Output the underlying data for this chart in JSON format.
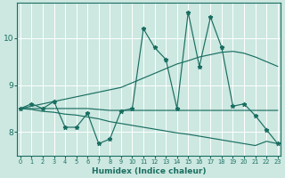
{
  "xlabel": "Humidex (Indice chaleur)",
  "bg_color": "#cce8e0",
  "grid_color": "#ffffff",
  "line_color": "#1a6e62",
  "x_values": [
    0,
    1,
    2,
    3,
    4,
    5,
    6,
    7,
    8,
    9,
    10,
    11,
    12,
    13,
    14,
    15,
    16,
    17,
    18,
    19,
    20,
    21,
    22,
    23
  ],
  "y_main": [
    8.5,
    8.6,
    8.5,
    8.65,
    8.1,
    8.1,
    8.4,
    7.75,
    7.85,
    8.45,
    8.5,
    10.2,
    9.8,
    9.55,
    8.5,
    10.55,
    9.4,
    10.45,
    9.8,
    8.55,
    8.6,
    8.35,
    8.05,
    7.75
  ],
  "y_upper": [
    8.5,
    8.55,
    8.6,
    8.65,
    8.7,
    8.75,
    8.8,
    8.85,
    8.9,
    8.95,
    9.05,
    9.15,
    9.25,
    9.35,
    9.45,
    9.52,
    9.6,
    9.65,
    9.7,
    9.72,
    9.68,
    9.6,
    9.5,
    9.4
  ],
  "y_lower": [
    8.5,
    8.48,
    8.44,
    8.42,
    8.38,
    8.36,
    8.32,
    8.28,
    8.22,
    8.18,
    8.14,
    8.1,
    8.06,
    8.02,
    7.98,
    7.95,
    7.91,
    7.87,
    7.83,
    7.79,
    7.75,
    7.71,
    7.8,
    7.75
  ],
  "y_flat": [
    8.5,
    8.5,
    8.5,
    8.5,
    8.5,
    8.5,
    8.5,
    8.48,
    8.46,
    8.46,
    8.46,
    8.46,
    8.46,
    8.46,
    8.46,
    8.46,
    8.46,
    8.46,
    8.46,
    8.46,
    8.46,
    8.46,
    8.46,
    8.46
  ],
  "ylim": [
    7.5,
    10.75
  ],
  "xlim": [
    -0.3,
    23.3
  ],
  "yticks": [
    8,
    9,
    10
  ],
  "xticks": [
    0,
    1,
    2,
    3,
    4,
    5,
    6,
    7,
    8,
    9,
    10,
    11,
    12,
    13,
    14,
    15,
    16,
    17,
    18,
    19,
    20,
    21,
    22,
    23
  ]
}
